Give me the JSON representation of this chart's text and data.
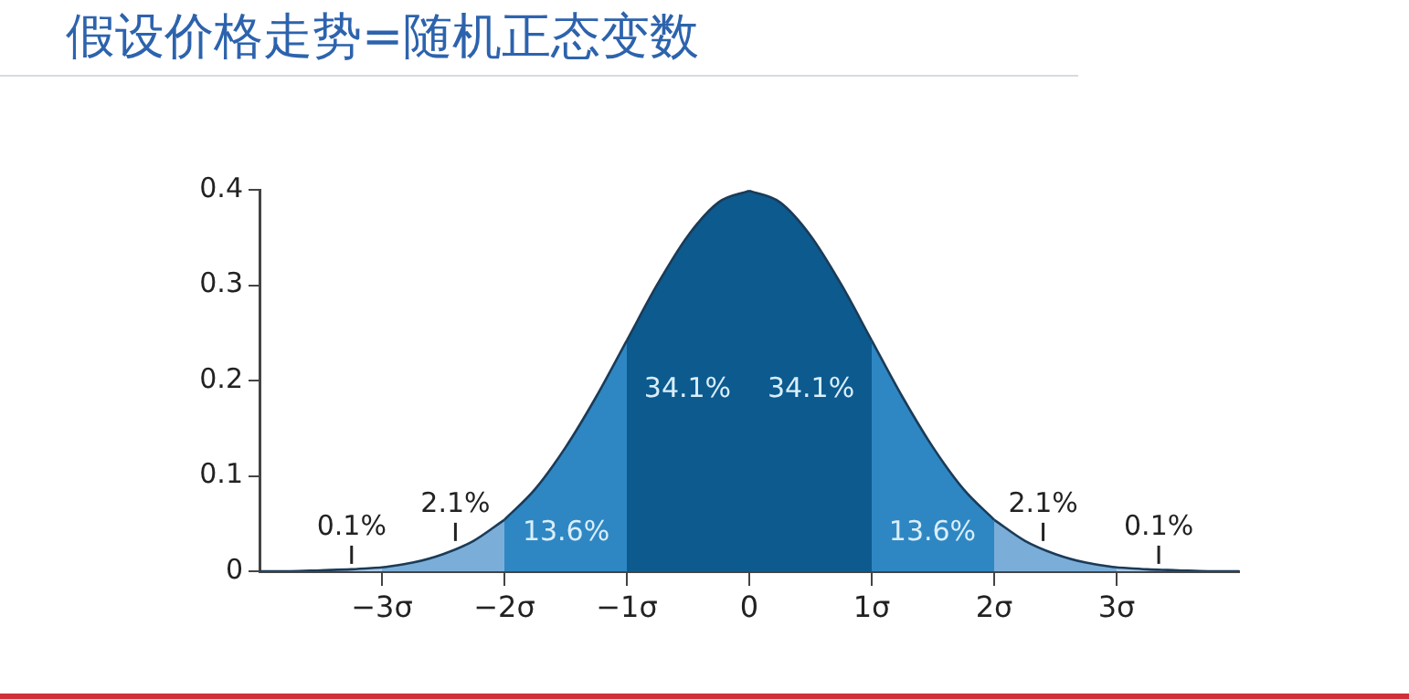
{
  "chart_data": {
    "type": "area",
    "title": "假设价格走势=随机正态变数",
    "series": [
      {
        "color": "#a9c9e6",
        "x": [
          -4,
          -3.75,
          -3.5,
          -3.25,
          -3
        ],
        "values": [
          0,
          0,
          0.001,
          0.002,
          0.004
        ]
      },
      {
        "color": "#7aaed8",
        "x": [
          -3,
          -2.75,
          -2.5,
          -2.25,
          -2
        ],
        "values": [
          0.004,
          0.009,
          0.018,
          0.032,
          0.054
        ]
      },
      {
        "color": "#2e87c3",
        "x": [
          -2,
          -1.75,
          -1.5,
          -1.25,
          -1
        ],
        "values": [
          0.054,
          0.086,
          0.13,
          0.183,
          0.242
        ]
      },
      {
        "color": "#0c5a8e",
        "x": [
          -1,
          -0.75,
          -0.5,
          -0.25,
          0
        ],
        "values": [
          0.242,
          0.301,
          0.352,
          0.387,
          0.399
        ]
      },
      {
        "color": "#0c5a8e",
        "x": [
          0,
          0.25,
          0.5,
          0.75,
          1
        ],
        "values": [
          0.399,
          0.387,
          0.352,
          0.301,
          0.242
        ]
      },
      {
        "color": "#2e87c3",
        "x": [
          1,
          1.25,
          1.5,
          1.75,
          2
        ],
        "values": [
          0.242,
          0.183,
          0.13,
          0.086,
          0.054
        ]
      },
      {
        "color": "#7aaed8",
        "x": [
          2,
          2.25,
          2.5,
          2.75,
          3
        ],
        "values": [
          0.054,
          0.032,
          0.018,
          0.009,
          0.004
        ]
      },
      {
        "color": "#a9c9e6",
        "x": [
          3,
          3.25,
          3.5,
          3.75,
          4
        ],
        "values": [
          0.004,
          0.002,
          0.001,
          0,
          0
        ]
      }
    ],
    "xlim": [
      -4,
      4
    ],
    "xticks": [
      {
        "value": -3,
        "label": "−3σ"
      },
      {
        "value": -2,
        "label": "−2σ"
      },
      {
        "value": -1,
        "label": "−1σ"
      },
      0,
      {
        "value": 1,
        "label": "1σ"
      },
      {
        "value": 2,
        "label": "2σ"
      },
      {
        "value": 3,
        "label": "3σ"
      }
    ],
    "ylim": [
      0,
      0.4
    ],
    "yticks": [
      0,
      0.1,
      0.2,
      0.3,
      0.4
    ],
    "grid": false,
    "legend": false,
    "annotations": [
      "0.1%",
      "2.1%",
      "13.6%",
      "34.1%",
      "34.1%",
      "13.6%",
      "2.1%",
      "0.1%"
    ]
  }
}
